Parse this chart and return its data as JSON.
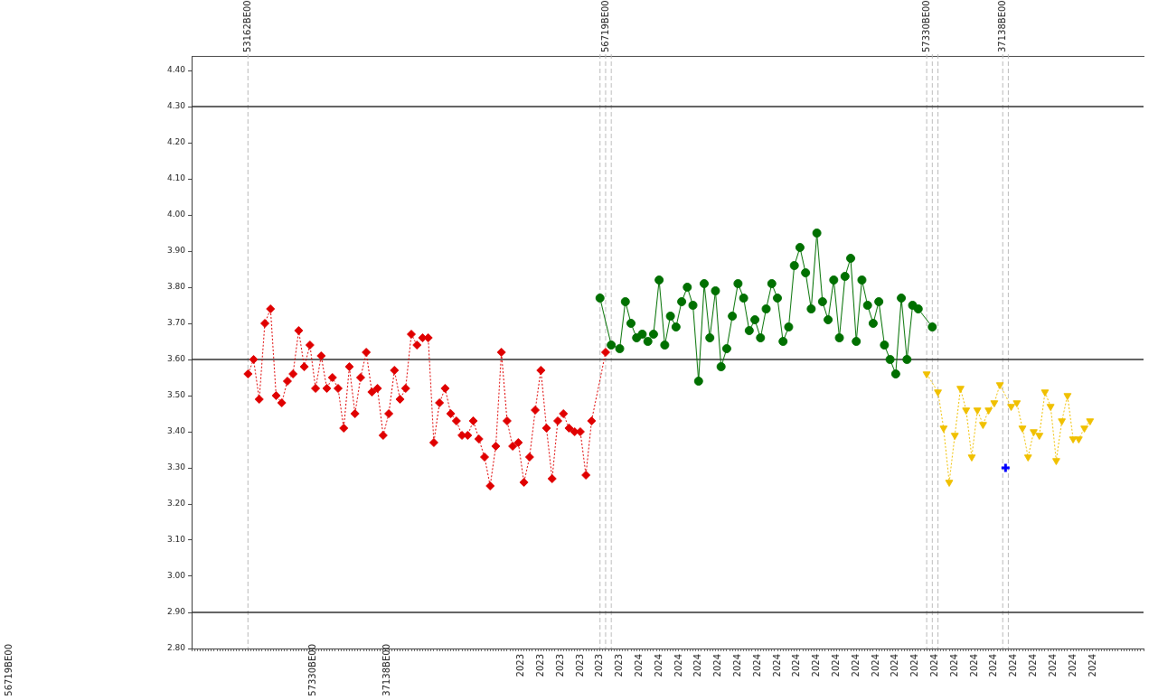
{
  "chart_data": {
    "type": "line",
    "ylim": [
      2.8,
      4.44
    ],
    "yticks": [
      {
        "value": 2.8,
        "label": "2.80"
      },
      {
        "value": 2.9,
        "label": "2.90"
      },
      {
        "value": 3.0,
        "label": "3.00"
      },
      {
        "value": 3.1,
        "label": "3.10"
      },
      {
        "value": 3.2,
        "label": "3.20"
      },
      {
        "value": 3.3,
        "label": "3.30"
      },
      {
        "value": 3.4,
        "label": "3.40"
      },
      {
        "value": 3.5,
        "label": "3.50"
      },
      {
        "value": 3.6,
        "label": "3.60"
      },
      {
        "value": 3.7,
        "label": "3.70"
      },
      {
        "value": 3.8,
        "label": "3.80"
      },
      {
        "value": 3.9,
        "label": "3.90"
      },
      {
        "value": 4.0,
        "label": "4.00"
      },
      {
        "value": 4.1,
        "label": "4.10"
      },
      {
        "value": 4.2,
        "label": "4.20"
      },
      {
        "value": 4.3,
        "label": "4.30"
      },
      {
        "value": 4.4,
        "label": "4.40"
      }
    ],
    "categories": [
      null,
      null,
      null,
      null,
      null,
      null,
      null,
      null,
      null,
      null,
      null,
      null,
      null,
      null,
      null,
      null,
      null,
      null,
      null,
      null,
      null,
      null,
      null,
      null,
      null,
      null,
      null,
      null,
      null,
      null,
      null,
      null,
      null,
      null,
      null,
      null,
      null,
      null,
      null,
      null,
      null,
      null,
      null,
      null,
      null,
      null,
      null,
      null,
      null,
      null,
      null,
      null,
      null,
      null,
      null,
      null,
      null,
      null,
      null,
      null,
      null,
      null,
      null,
      null,
      null,
      null,
      null,
      null,
      null,
      null,
      null,
      null,
      null,
      null,
      null,
      null,
      null,
      null,
      null,
      null,
      null,
      null,
      null,
      null,
      null,
      null,
      null,
      null,
      null,
      null,
      null,
      null,
      null,
      null,
      null,
      null,
      null,
      null,
      null,
      null,
      null,
      null,
      null,
      null,
      null,
      null,
      null,
      null,
      null,
      null,
      null,
      null,
      null,
      null,
      null,
      null,
      null,
      "2023",
      null,
      null,
      null,
      null,
      null,
      null,
      "2023",
      null,
      null,
      null,
      null,
      null,
      null,
      "2023",
      null,
      null,
      null,
      null,
      null,
      null,
      "2023",
      null,
      null,
      null,
      null,
      null,
      null,
      "2023",
      null,
      null,
      null,
      null,
      null,
      null,
      "2023",
      null,
      null,
      null,
      null,
      null,
      null,
      "2024",
      null,
      null,
      null,
      null,
      null,
      null,
      "2024",
      null,
      null,
      null,
      null,
      null,
      null,
      "2024",
      null,
      null,
      null,
      null,
      null,
      null,
      "2024",
      null,
      null,
      null,
      null,
      null,
      null,
      "2024",
      null,
      null,
      null,
      null,
      null,
      null,
      "2024",
      null,
      null,
      null,
      null,
      null,
      null,
      "2024",
      null,
      null,
      null,
      null,
      null,
      null,
      "2024",
      null,
      null,
      null,
      null,
      null,
      null,
      "2024",
      null,
      null,
      null,
      null,
      null,
      null,
      "2024",
      null,
      null,
      null,
      null,
      null,
      null,
      "2024",
      null,
      null,
      null,
      null,
      null,
      null,
      "2024",
      null,
      null,
      null,
      null,
      null,
      null,
      "2024",
      null,
      null,
      null,
      null,
      null,
      null,
      "2024",
      null,
      null,
      null,
      null,
      null,
      null,
      "2024",
      null,
      null,
      null,
      null,
      null,
      null,
      "2024",
      null,
      null,
      null,
      null,
      null,
      null,
      "2024",
      null,
      null,
      null,
      null,
      null,
      null,
      "2024",
      null,
      null,
      null,
      null,
      null,
      null,
      "2024",
      null,
      null,
      null,
      null,
      null,
      null,
      "2024",
      null,
      null,
      null,
      null,
      null,
      null,
      "2024",
      null,
      null,
      null,
      null,
      null,
      null,
      "2024",
      null,
      null,
      null,
      null,
      null,
      null,
      "2024",
      null,
      null,
      null,
      null,
      null,
      null,
      "2024",
      null,
      null,
      null,
      null,
      null,
      null,
      null,
      null,
      null,
      null,
      null,
      null,
      null,
      null,
      null,
      null,
      null,
      null
    ],
    "grid": false,
    "legend": false,
    "series": [
      {
        "color": "#e00000",
        "marker": "diamond",
        "line_style": "dotted",
        "values": [
          null,
          null,
          null,
          null,
          null,
          null,
          null,
          null,
          null,
          null,
          null,
          null,
          null,
          null,
          null,
          null,
          null,
          null,
          null,
          null,
          3.56,
          null,
          3.6,
          null,
          3.49,
          null,
          3.7,
          null,
          3.74,
          null,
          3.5,
          null,
          3.48,
          null,
          3.54,
          null,
          3.56,
          null,
          3.68,
          null,
          3.58,
          null,
          3.64,
          null,
          3.52,
          null,
          3.61,
          null,
          3.52,
          null,
          3.55,
          null,
          3.52,
          null,
          3.41,
          null,
          3.58,
          null,
          3.45,
          null,
          3.55,
          null,
          3.62,
          null,
          3.51,
          null,
          3.52,
          null,
          3.39,
          null,
          3.45,
          null,
          3.57,
          null,
          3.49,
          null,
          3.52,
          null,
          3.67,
          null,
          3.64,
          null,
          3.66,
          null,
          3.66,
          null,
          3.37,
          null,
          3.48,
          null,
          3.52,
          null,
          3.45,
          null,
          3.43,
          null,
          3.39,
          null,
          3.39,
          null,
          3.43,
          null,
          3.38,
          null,
          3.33,
          null,
          3.25,
          null,
          3.36,
          null,
          3.62,
          null,
          3.43,
          null,
          3.36,
          null,
          3.37,
          null,
          3.26,
          null,
          3.33,
          null,
          3.46,
          null,
          3.57,
          null,
          3.41,
          null,
          3.27,
          null,
          3.43,
          null,
          3.45,
          null,
          3.41,
          null,
          3.4,
          null,
          3.4,
          null,
          3.28,
          null,
          3.43,
          null,
          null,
          null,
          null,
          3.62,
          null,
          null,
          null,
          null,
          null,
          null,
          null,
          null,
          null,
          null,
          null,
          null,
          null,
          null,
          null,
          null,
          null,
          null,
          null,
          null,
          null,
          null,
          null,
          null,
          null,
          null,
          null,
          null,
          null,
          null,
          null,
          null,
          null,
          null,
          null,
          null,
          null,
          null,
          null,
          null,
          null,
          null,
          null,
          null,
          null,
          null,
          null,
          null,
          null,
          null,
          null,
          null,
          null,
          null,
          null,
          null,
          null,
          null,
          null,
          null,
          null,
          null,
          null,
          null,
          null,
          null,
          null,
          null,
          null,
          null,
          null,
          null,
          null,
          null,
          null,
          null,
          null,
          null,
          null,
          null,
          null,
          null,
          null,
          null,
          null,
          null,
          null,
          null,
          null,
          null,
          null,
          null,
          null,
          null,
          null,
          null,
          null,
          null,
          null,
          null,
          null,
          null,
          null,
          null,
          null,
          null,
          null,
          null,
          null,
          null,
          null,
          null,
          null,
          null,
          null,
          null,
          null,
          null,
          null,
          null,
          null,
          null,
          null,
          null,
          null,
          null,
          null,
          null,
          null,
          null,
          null,
          null,
          null,
          null,
          null,
          null,
          null,
          null,
          null,
          null,
          null,
          null,
          null,
          null,
          null,
          null,
          null,
          null,
          null,
          null,
          null,
          null,
          null,
          null,
          null,
          null,
          null,
          null,
          null,
          null,
          null,
          null,
          null,
          null,
          null,
          null,
          null,
          null,
          null,
          null,
          null,
          null,
          null,
          null,
          null,
          null,
          null,
          null,
          null,
          null,
          null,
          null,
          null,
          null,
          null,
          null,
          null,
          null,
          null,
          null,
          null
        ]
      },
      {
        "color": "#007000",
        "marker": "circle",
        "line_style": "solid",
        "values": [
          null,
          null,
          null,
          null,
          null,
          null,
          null,
          null,
          null,
          null,
          null,
          null,
          null,
          null,
          null,
          null,
          null,
          null,
          null,
          null,
          null,
          null,
          null,
          null,
          null,
          null,
          null,
          null,
          null,
          null,
          null,
          null,
          null,
          null,
          null,
          null,
          null,
          null,
          null,
          null,
          null,
          null,
          null,
          null,
          null,
          null,
          null,
          null,
          null,
          null,
          null,
          null,
          null,
          null,
          null,
          null,
          null,
          null,
          null,
          null,
          null,
          null,
          null,
          null,
          null,
          null,
          null,
          null,
          null,
          null,
          null,
          null,
          null,
          null,
          null,
          null,
          null,
          null,
          null,
          null,
          null,
          null,
          null,
          null,
          null,
          null,
          null,
          null,
          null,
          null,
          null,
          null,
          null,
          null,
          null,
          null,
          null,
          null,
          null,
          null,
          null,
          null,
          null,
          null,
          null,
          null,
          null,
          null,
          null,
          null,
          null,
          null,
          null,
          null,
          null,
          null,
          null,
          null,
          null,
          null,
          null,
          null,
          null,
          null,
          null,
          null,
          null,
          null,
          null,
          null,
          null,
          null,
          null,
          null,
          null,
          null,
          null,
          null,
          null,
          null,
          null,
          null,
          null,
          null,
          null,
          3.77,
          null,
          null,
          null,
          3.64,
          null,
          null,
          3.63,
          null,
          3.76,
          null,
          3.7,
          null,
          3.66,
          null,
          3.67,
          null,
          3.65,
          null,
          3.67,
          null,
          3.82,
          null,
          3.64,
          null,
          3.72,
          null,
          3.69,
          null,
          3.76,
          null,
          3.8,
          null,
          3.75,
          null,
          3.54,
          null,
          3.81,
          null,
          3.66,
          null,
          3.79,
          null,
          3.58,
          null,
          3.63,
          null,
          3.72,
          null,
          3.81,
          null,
          3.77,
          null,
          3.68,
          null,
          3.71,
          null,
          3.66,
          null,
          3.74,
          null,
          3.81,
          null,
          3.77,
          null,
          3.65,
          null,
          3.69,
          null,
          3.86,
          null,
          3.91,
          null,
          3.84,
          null,
          3.74,
          null,
          3.95,
          null,
          3.76,
          null,
          3.71,
          null,
          3.82,
          null,
          3.66,
          null,
          3.83,
          null,
          3.88,
          null,
          3.65,
          null,
          3.82,
          null,
          3.75,
          null,
          3.7,
          null,
          3.76,
          null,
          3.64,
          null,
          3.6,
          null,
          3.56,
          null,
          3.77,
          null,
          3.6,
          null,
          3.75,
          null,
          3.74,
          null,
          null,
          null,
          null,
          3.69,
          null,
          null,
          null,
          null,
          null,
          null,
          null,
          null,
          null,
          null,
          null,
          null,
          null,
          null,
          null,
          null,
          null,
          null,
          null,
          null,
          null,
          null,
          null,
          null,
          null,
          null,
          null,
          null,
          null,
          null,
          null,
          null,
          null,
          null,
          null,
          null,
          null,
          null,
          null,
          null,
          null,
          null,
          null,
          null,
          null,
          null,
          null,
          null,
          null,
          null,
          null,
          null,
          null,
          null,
          null,
          null,
          null,
          null,
          null,
          null,
          null,
          null,
          null,
          null,
          null,
          null,
          null,
          null,
          null,
          null,
          null,
          null,
          null,
          null,
          null
        ]
      },
      {
        "color": "#f0c000",
        "marker": "triangle",
        "line_style": "dotted",
        "values": [
          null,
          null,
          null,
          null,
          null,
          null,
          null,
          null,
          null,
          null,
          null,
          null,
          null,
          null,
          null,
          null,
          null,
          null,
          null,
          null,
          null,
          null,
          null,
          null,
          null,
          null,
          null,
          null,
          null,
          null,
          null,
          null,
          null,
          null,
          null,
          null,
          null,
          null,
          null,
          null,
          null,
          null,
          null,
          null,
          null,
          null,
          null,
          null,
          null,
          null,
          null,
          null,
          null,
          null,
          null,
          null,
          null,
          null,
          null,
          null,
          null,
          null,
          null,
          null,
          null,
          null,
          null,
          null,
          null,
          null,
          null,
          null,
          null,
          null,
          null,
          null,
          null,
          null,
          null,
          null,
          null,
          null,
          null,
          null,
          null,
          null,
          null,
          null,
          null,
          null,
          null,
          null,
          null,
          null,
          null,
          null,
          null,
          null,
          null,
          null,
          null,
          null,
          null,
          null,
          null,
          null,
          null,
          null,
          null,
          null,
          null,
          null,
          null,
          null,
          null,
          null,
          null,
          null,
          null,
          null,
          null,
          null,
          null,
          null,
          null,
          null,
          null,
          null,
          null,
          null,
          null,
          null,
          null,
          null,
          null,
          null,
          null,
          null,
          null,
          null,
          null,
          null,
          null,
          null,
          null,
          null,
          null,
          null,
          null,
          null,
          null,
          null,
          null,
          null,
          null,
          null,
          null,
          null,
          null,
          null,
          null,
          null,
          null,
          null,
          null,
          null,
          null,
          null,
          null,
          null,
          null,
          null,
          null,
          null,
          null,
          null,
          null,
          null,
          null,
          null,
          null,
          null,
          null,
          null,
          null,
          null,
          null,
          null,
          null,
          null,
          null,
          null,
          null,
          null,
          null,
          null,
          null,
          null,
          null,
          null,
          null,
          null,
          null,
          null,
          null,
          null,
          null,
          null,
          null,
          null,
          null,
          null,
          null,
          null,
          null,
          null,
          null,
          null,
          null,
          null,
          null,
          null,
          null,
          null,
          null,
          null,
          null,
          null,
          null,
          null,
          null,
          null,
          null,
          null,
          null,
          null,
          null,
          null,
          null,
          null,
          null,
          null,
          null,
          null,
          null,
          null,
          null,
          null,
          null,
          null,
          null,
          null,
          null,
          null,
          null,
          null,
          null,
          null,
          null,
          null,
          null,
          3.56,
          null,
          null,
          null,
          3.51,
          null,
          3.41,
          null,
          3.26,
          null,
          3.39,
          null,
          3.52,
          null,
          3.46,
          null,
          3.33,
          null,
          3.46,
          null,
          3.42,
          null,
          3.46,
          null,
          3.48,
          null,
          3.53,
          null,
          null,
          null,
          3.47,
          null,
          3.48,
          null,
          3.41,
          null,
          3.33,
          null,
          3.4,
          null,
          3.39,
          null,
          3.51,
          null,
          3.47,
          null,
          3.32,
          null,
          3.43,
          null,
          3.5,
          null,
          3.38,
          null,
          3.38,
          null,
          3.41,
          null,
          3.43,
          null,
          null,
          null,
          null,
          null,
          null,
          null,
          null,
          null,
          null,
          null,
          null,
          null,
          null,
          null,
          null,
          null,
          null,
          null
        ]
      },
      {
        "type": "scatter",
        "color": "#0000ff",
        "marker": "cross",
        "values": [
          null,
          null,
          null,
          null,
          null,
          null,
          null,
          null,
          null,
          null,
          null,
          null,
          null,
          null,
          null,
          null,
          null,
          null,
          null,
          null,
          null,
          null,
          null,
          null,
          null,
          null,
          null,
          null,
          null,
          null,
          null,
          null,
          null,
          null,
          null,
          null,
          null,
          null,
          null,
          null,
          null,
          null,
          null,
          null,
          null,
          null,
          null,
          null,
          null,
          null,
          null,
          null,
          null,
          null,
          null,
          null,
          null,
          null,
          null,
          null,
          null,
          null,
          null,
          null,
          null,
          null,
          null,
          null,
          null,
          null,
          null,
          null,
          null,
          null,
          null,
          null,
          null,
          null,
          null,
          null,
          null,
          null,
          null,
          null,
          null,
          null,
          null,
          null,
          null,
          null,
          null,
          null,
          null,
          null,
          null,
          null,
          null,
          null,
          null,
          null,
          null,
          null,
          null,
          null,
          null,
          null,
          null,
          null,
          null,
          null,
          null,
          null,
          null,
          null,
          null,
          null,
          null,
          null,
          null,
          null,
          null,
          null,
          null,
          null,
          null,
          null,
          null,
          null,
          null,
          null,
          null,
          null,
          null,
          null,
          null,
          null,
          null,
          null,
          null,
          null,
          null,
          null,
          null,
          null,
          null,
          null,
          null,
          null,
          null,
          null,
          null,
          null,
          null,
          null,
          null,
          null,
          null,
          null,
          null,
          null,
          null,
          null,
          null,
          null,
          null,
          null,
          null,
          null,
          null,
          null,
          null,
          null,
          null,
          null,
          null,
          null,
          null,
          null,
          null,
          null,
          null,
          null,
          null,
          null,
          null,
          null,
          null,
          null,
          null,
          null,
          null,
          null,
          null,
          null,
          null,
          null,
          null,
          null,
          null,
          null,
          null,
          null,
          null,
          null,
          null,
          null,
          null,
          null,
          null,
          null,
          null,
          null,
          null,
          null,
          null,
          null,
          null,
          null,
          null,
          null,
          null,
          null,
          null,
          null,
          null,
          null,
          null,
          null,
          null,
          null,
          null,
          null,
          null,
          null,
          null,
          null,
          null,
          null,
          null,
          null,
          null,
          null,
          null,
          null,
          null,
          null,
          null,
          null,
          null,
          null,
          null,
          null,
          null,
          null,
          null,
          null,
          null,
          null,
          null,
          null,
          null,
          null,
          null,
          null,
          null,
          null,
          null,
          null,
          null,
          null,
          null,
          null,
          null,
          null,
          null,
          null,
          null,
          null,
          null,
          null,
          null,
          null,
          null,
          null,
          null,
          null,
          null,
          null,
          null,
          3.3,
          null,
          null,
          null,
          null,
          null,
          null,
          null,
          null,
          null,
          null,
          null,
          null,
          null,
          null,
          null,
          null,
          null,
          null,
          null,
          null,
          null,
          null,
          null,
          null,
          null,
          null,
          null,
          null,
          null,
          null,
          null,
          null,
          null,
          null,
          null,
          null,
          null,
          null,
          null,
          null,
          null,
          null,
          null,
          null,
          null,
          null,
          null,
          null,
          null
        ]
      }
    ],
    "ref_lines": [
      {
        "axis": "y",
        "value": 4.3,
        "color": "#333333",
        "line_style": "solid"
      },
      {
        "axis": "y",
        "value": 3.6,
        "color": "#333333",
        "line_style": "solid"
      },
      {
        "axis": "y",
        "value": 2.9,
        "color": "#333333",
        "line_style": "solid"
      }
    ],
    "annotations": [
      "53162BE00",
      "56719BE00",
      "57330BE00",
      "37138BE00",
      "56719BE00",
      "57330BE00",
      "37138BE00"
    ]
  }
}
